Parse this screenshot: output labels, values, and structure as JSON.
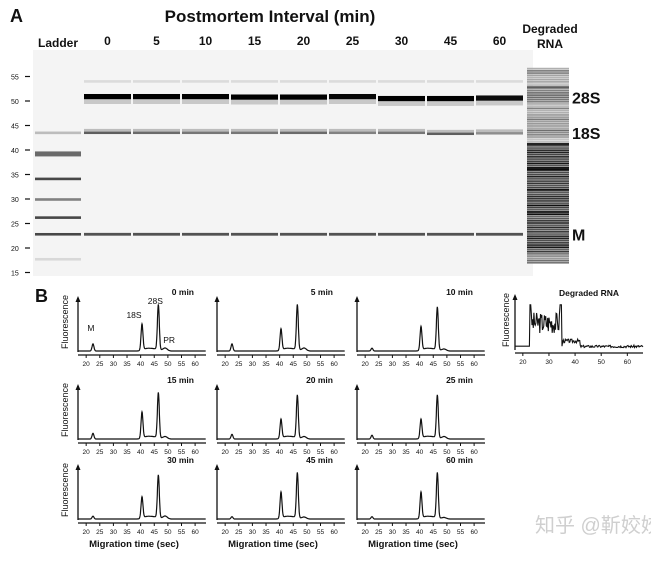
{
  "panel_labels": {
    "a": "A",
    "b": "B"
  },
  "watermark": "知乎 @靳姣姣",
  "chart_data": [
    {
      "type": "heatmap",
      "subtype": "gel-image",
      "title": "Postmortem Interval (min)",
      "lanes": [
        "Ladder",
        "0",
        "5",
        "10",
        "15",
        "20",
        "25",
        "30",
        "45",
        "60",
        "Degraded RNA"
      ],
      "y_ticks": [
        55,
        50,
        45,
        40,
        35,
        30,
        25,
        20,
        15
      ],
      "ylim": [
        15,
        59
      ],
      "band_labels": [
        {
          "label": "28S",
          "y": 50.7
        },
        {
          "label": "18S",
          "y": 43.5
        },
        {
          "label": "M",
          "y": 22.8
        }
      ],
      "ladder_bands": [
        {
          "y": 43.5,
          "intensity": 0.2
        },
        {
          "y": 39.2,
          "intensity": 0.55
        },
        {
          "y": 34.1,
          "intensity": 0.7
        },
        {
          "y": 29.9,
          "intensity": 0.45
        },
        {
          "y": 26.2,
          "intensity": 0.7
        },
        {
          "y": 22.8,
          "intensity": 0.7
        },
        {
          "y": 17.7,
          "intensity": 0.08
        }
      ],
      "sample_bands": {
        "28S": {
          "y": [
            50.9,
            50.9,
            50.9,
            50.8,
            50.8,
            50.9,
            50.5,
            50.5,
            50.6
          ],
          "intensity": [
            1,
            1,
            1,
            1,
            1,
            0.97,
            1,
            1,
            0.95
          ]
        },
        "18S": {
          "y": [
            43.5,
            43.5,
            43.5,
            43.5,
            43.5,
            43.5,
            43.5,
            43.3,
            43.4
          ],
          "intensity": [
            0.6,
            0.55,
            0.5,
            0.5,
            0.55,
            0.45,
            0.5,
            0.6,
            0.4
          ]
        },
        "M": {
          "y": [
            22.8,
            22.8,
            22.8,
            22.8,
            22.8,
            22.8,
            22.8,
            22.8,
            22.8
          ],
          "intensity": [
            0.65,
            0.65,
            0.65,
            0.65,
            0.65,
            0.65,
            0.65,
            0.65,
            0.65
          ]
        }
      }
    },
    {
      "type": "line",
      "subtype": "electropherograms",
      "xlabel": "Migration time (sec)",
      "ylabel": "Fluorescence",
      "x_ticks": [
        20,
        25,
        30,
        35,
        40,
        45,
        50,
        55,
        60
      ],
      "xlim": [
        17,
        64
      ],
      "peak_labels": [
        {
          "label": "M",
          "x": 22.5
        },
        {
          "label": "18S",
          "x": 40.5
        },
        {
          "label": "28S",
          "x": 46.5
        },
        {
          "label": "PR",
          "x": 49
        }
      ],
      "panels": [
        {
          "title": "0 min",
          "peaks": {
            "M": 0.15,
            "18S": 0.55,
            "28S": 0.95,
            "PR": 0.06
          }
        },
        {
          "title": "5 min",
          "peaks": {
            "M": 0.15,
            "18S": 0.45,
            "28S": 0.95,
            "PR": 0.06
          }
        },
        {
          "title": "10 min",
          "peaks": {
            "M": 0.06,
            "18S": 0.5,
            "28S": 0.9,
            "PR": 0.04
          }
        },
        {
          "title": "15 min",
          "peaks": {
            "M": 0.12,
            "18S": 0.55,
            "28S": 0.95,
            "PR": 0.05
          }
        },
        {
          "title": "20 min",
          "peaks": {
            "M": 0.1,
            "18S": 0.4,
            "28S": 0.9,
            "PR": 0.05
          }
        },
        {
          "title": "25 min",
          "peaks": {
            "M": 0.08,
            "18S": 0.4,
            "28S": 0.9,
            "PR": 0.05
          }
        },
        {
          "title": "30 min",
          "peaks": {
            "M": 0.06,
            "18S": 0.45,
            "28S": 0.9,
            "PR": 0.06
          }
        },
        {
          "title": "45 min",
          "peaks": {
            "M": 0.05,
            "18S": 0.55,
            "28S": 0.95,
            "PR": 0.04
          }
        },
        {
          "title": "60 min",
          "peaks": {
            "M": 0.05,
            "18S": 0.55,
            "28S": 0.95,
            "PR": 0.03
          }
        }
      ],
      "degraded": {
        "title": "Degraded RNA",
        "ylabel": "Fluorescence",
        "x_ticks": [
          20,
          30,
          40,
          50,
          60
        ]
      }
    }
  ]
}
